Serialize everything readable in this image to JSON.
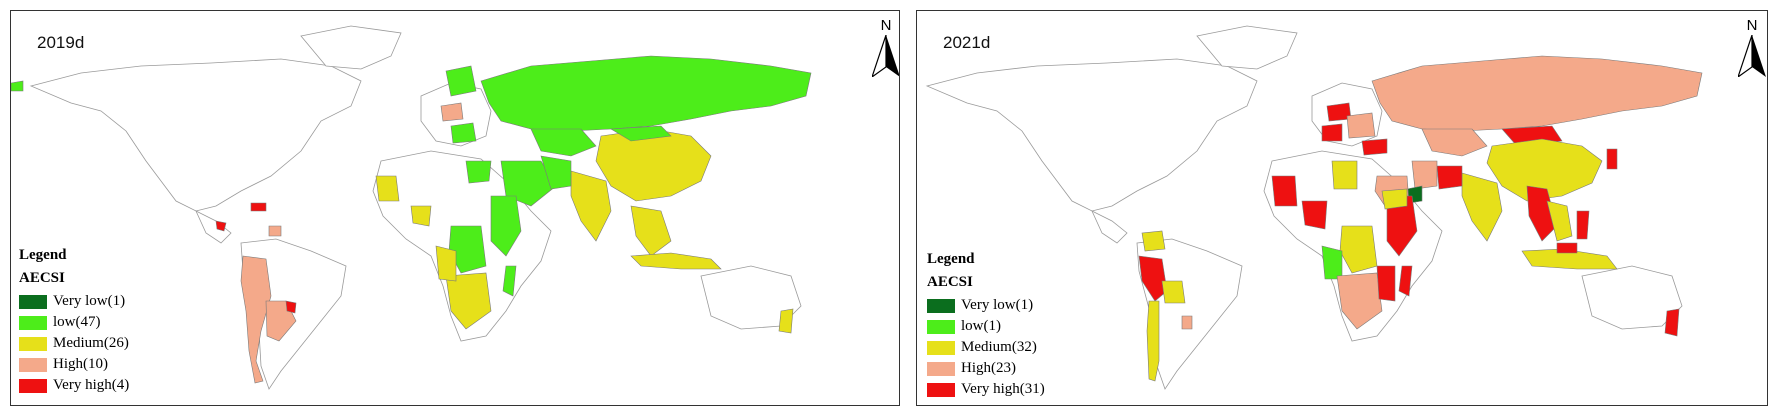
{
  "colors": {
    "very_low": "#0b6e1e",
    "low": "#4ded1a",
    "medium": "#e6e01a",
    "high": "#f4a98a",
    "very_high": "#ee1111",
    "no_data": "#ffffff",
    "border": "#9a9a9a"
  },
  "north_arrow": {
    "letter": "N"
  },
  "legend": {
    "title": "Legend",
    "subtitle": "AECSI"
  },
  "panels": [
    {
      "year": "2019d",
      "classes": [
        {
          "key": "very_low",
          "label": "Very low(1)",
          "color": "#0b6e1e"
        },
        {
          "key": "low",
          "label": "low(47)",
          "color": "#4ded1a"
        },
        {
          "key": "medium",
          "label": "Medium(26)",
          "color": "#e6e01a"
        },
        {
          "key": "high",
          "label": "High(10)",
          "color": "#f4a98a"
        },
        {
          "key": "very_high",
          "label": "Very high(4)",
          "color": "#ee1111"
        }
      ]
    },
    {
      "year": "2021d",
      "classes": [
        {
          "key": "very_low",
          "label": "Very low(1)",
          "color": "#0b6e1e"
        },
        {
          "key": "low",
          "label": "low(1)",
          "color": "#4ded1a"
        },
        {
          "key": "medium",
          "label": "Medium(32)",
          "color": "#e6e01a"
        },
        {
          "key": "high",
          "label": "High(23)",
          "color": "#f4a98a"
        },
        {
          "key": "very_high",
          "label": "Very high(31)",
          "color": "#ee1111"
        }
      ]
    }
  ]
}
